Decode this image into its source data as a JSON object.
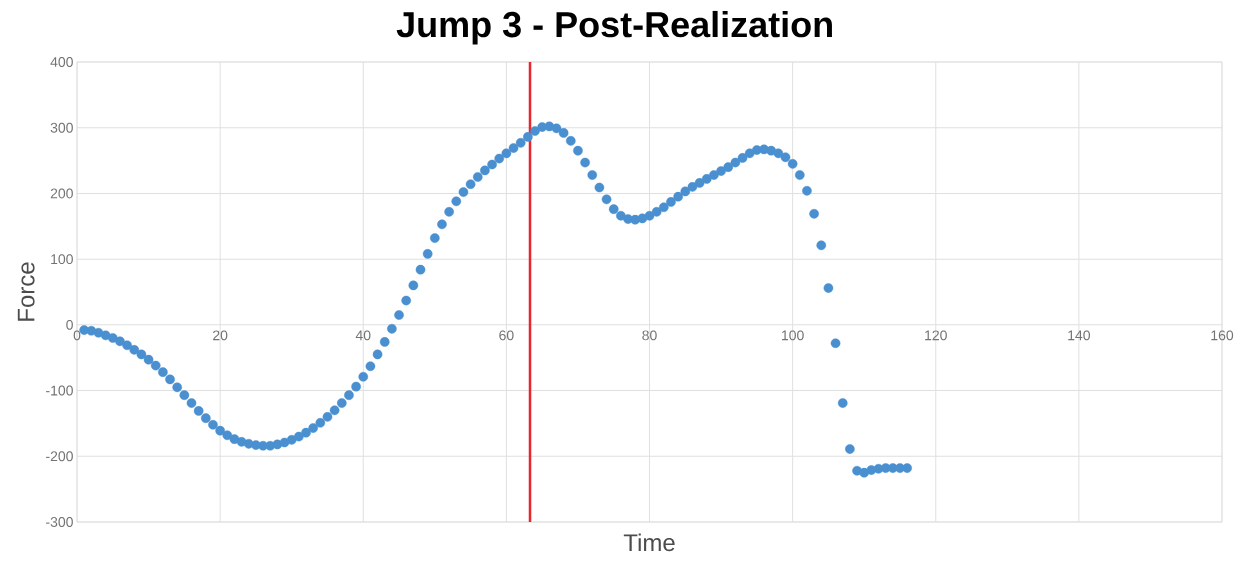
{
  "chart_data": {
    "type": "scatter",
    "title": "Jump 3 - Post-Realization",
    "xlabel": "Time",
    "ylabel": "Force",
    "x": [
      1,
      2,
      3,
      4,
      5,
      6,
      7,
      8,
      9,
      10,
      11,
      12,
      13,
      14,
      15,
      16,
      17,
      18,
      19,
      20,
      21,
      22,
      23,
      24,
      25,
      26,
      27,
      28,
      29,
      30,
      31,
      32,
      33,
      34,
      35,
      36,
      37,
      38,
      39,
      40,
      41,
      42,
      43,
      44,
      45,
      46,
      47,
      48,
      49,
      50,
      51,
      52,
      53,
      54,
      55,
      56,
      57,
      58,
      59,
      60,
      61,
      62,
      63,
      64,
      65,
      66,
      67,
      68,
      69,
      70,
      71,
      72,
      73,
      74,
      75,
      76,
      77,
      78,
      79,
      80,
      81,
      82,
      83,
      84,
      85,
      86,
      87,
      88,
      89,
      90,
      91,
      92,
      93,
      94,
      95,
      96,
      97,
      98,
      99,
      100,
      101,
      102,
      103,
      104,
      105,
      106,
      107,
      108,
      109,
      110,
      111,
      112,
      113,
      114,
      115,
      116
    ],
    "series": [
      {
        "color": "#4a90d0",
        "values": [
          -8,
          -9,
          -12,
          -16,
          -20,
          -25,
          -31,
          -38,
          -45,
          -53,
          -62,
          -72,
          -83,
          -95,
          -107,
          -119,
          -131,
          -142,
          -152,
          -161,
          -168,
          -174,
          -178,
          -181,
          -183,
          -184,
          -184,
          -182,
          -179,
          -175,
          -170,
          -164,
          -157,
          -149,
          -140,
          -130,
          -119,
          -107,
          -94,
          -79,
          -63,
          -45,
          -26,
          -6,
          15,
          37,
          60,
          84,
          108,
          132,
          153,
          172,
          188,
          202,
          214,
          225,
          235,
          244,
          253,
          261,
          269,
          277,
          286,
          295,
          301,
          302,
          299,
          292,
          280,
          265,
          247,
          228,
          209,
          191,
          176,
          166,
          161,
          160,
          162,
          166,
          172,
          179,
          187,
          195,
          203,
          210,
          216,
          222,
          228,
          234,
          240,
          247,
          254,
          261,
          266,
          267,
          265,
          261,
          255,
          245,
          228,
          204,
          169,
          121,
          56,
          -28,
          -119,
          -189,
          -222,
          -225,
          -221,
          -219,
          -218,
          -218,
          -218,
          -218
        ]
      }
    ],
    "xlim": [
      0,
      160
    ],
    "ylim": [
      -300,
      400
    ],
    "xticks": [
      0,
      20,
      40,
      60,
      80,
      100,
      120,
      140,
      160
    ],
    "yticks": [
      -300,
      -200,
      -100,
      0,
      100,
      200,
      300,
      400
    ],
    "grid": true,
    "marker": "circle",
    "ref_lines": [
      {
        "axis": "x",
        "value": 63.3,
        "color": "#e8262b"
      }
    ]
  }
}
